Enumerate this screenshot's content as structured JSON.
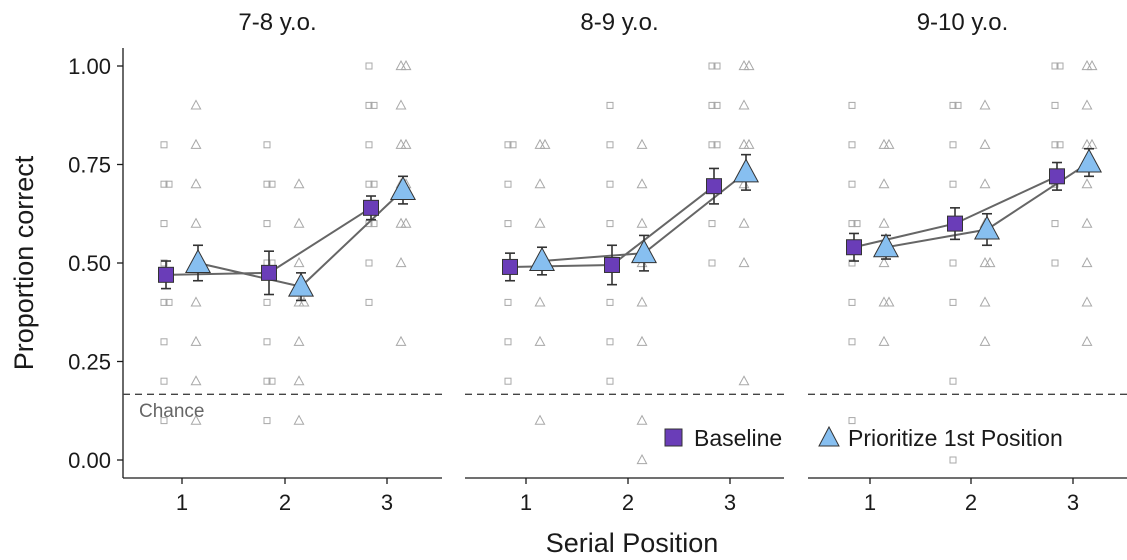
{
  "chart_data": {
    "type": "scatter",
    "title": "",
    "xlabel": "Serial Position",
    "ylabel": "Proportion correct",
    "ylim": [
      0,
      1.05
    ],
    "yticks": [
      "0.00",
      "0.25",
      "0.50",
      "0.75",
      "1.00"
    ],
    "ytick_values": [
      0,
      0.25,
      0.5,
      0.75,
      1.0
    ],
    "xticks": [
      "1",
      "2",
      "3"
    ],
    "grid": false,
    "legend_position": "bottom-right",
    "chance_level": 0.1667,
    "chance_label": "Chance",
    "colors": {
      "baseline_fill": "#6a3db8",
      "prioritize_fill": "#87bff0",
      "marker_edge": "#333333",
      "raw_points": "#a8a8a8",
      "line": "#666666"
    },
    "series": [
      {
        "name": "Baseline",
        "marker": "square"
      },
      {
        "name": "Prioritize 1st Position",
        "marker": "triangle"
      }
    ],
    "facets": [
      {
        "title": "7-8 y.o.",
        "means": [
          {
            "series": "Baseline",
            "x": [
              1,
              2,
              3
            ],
            "y": [
              0.47,
              0.475,
              0.64
            ],
            "err": [
              0.035,
              0.055,
              0.03
            ]
          },
          {
            "series": "Prioritize 1st Position",
            "x": [
              1,
              2,
              3
            ],
            "y": [
              0.5,
              0.44,
              0.685
            ],
            "err": [
              0.045,
              0.035,
              0.035
            ]
          }
        ],
        "raw": {
          "Baseline": [
            [
              0.1,
              0.2,
              0.3,
              0.4,
              0.4,
              0.5,
              0.6,
              0.7,
              0.7,
              0.8
            ],
            [
              0.1,
              0.2,
              0.2,
              0.3,
              0.4,
              0.5,
              0.5,
              0.6,
              0.7,
              0.7,
              0.8
            ],
            [
              0.4,
              0.5,
              0.6,
              0.6,
              0.7,
              0.7,
              0.8,
              0.9,
              0.9,
              1.0
            ]
          ],
          "Prioritize 1st Position": [
            [
              0.1,
              0.2,
              0.3,
              0.4,
              0.5,
              0.6,
              0.7,
              0.8,
              0.9
            ],
            [
              0.1,
              0.2,
              0.3,
              0.4,
              0.4,
              0.5,
              0.6,
              0.7
            ],
            [
              0.3,
              0.5,
              0.6,
              0.6,
              0.7,
              0.7,
              0.8,
              0.8,
              0.9,
              1.0,
              1.0
            ]
          ]
        }
      },
      {
        "title": "8-9 y.o.",
        "means": [
          {
            "series": "Baseline",
            "x": [
              1,
              2,
              3
            ],
            "y": [
              0.49,
              0.495,
              0.695
            ],
            "err": [
              0.035,
              0.05,
              0.045
            ]
          },
          {
            "series": "Prioritize 1st Position",
            "x": [
              1,
              2,
              3
            ],
            "y": [
              0.505,
              0.525,
              0.73
            ],
            "err": [
              0.035,
              0.045,
              0.045
            ]
          }
        ],
        "raw": {
          "Baseline": [
            [
              0.2,
              0.3,
              0.4,
              0.5,
              0.6,
              0.7,
              0.8,
              0.8
            ],
            [
              0.2,
              0.3,
              0.4,
              0.5,
              0.6,
              0.7,
              0.8,
              0.9
            ],
            [
              0.5,
              0.6,
              0.7,
              0.8,
              0.8,
              0.9,
              0.9,
              1.0,
              1.0
            ]
          ],
          "Prioritize 1st Position": [
            [
              0.1,
              0.3,
              0.4,
              0.5,
              0.6,
              0.7,
              0.8,
              0.8
            ],
            [
              0.0,
              0.1,
              0.3,
              0.4,
              0.5,
              0.6,
              0.7,
              0.8
            ],
            [
              0.2,
              0.5,
              0.6,
              0.7,
              0.8,
              0.8,
              0.9,
              1.0,
              1.0
            ]
          ]
        }
      },
      {
        "title": "9-10 y.o.",
        "means": [
          {
            "series": "Baseline",
            "x": [
              1,
              2,
              3
            ],
            "y": [
              0.54,
              0.6,
              0.72
            ],
            "err": [
              0.035,
              0.04,
              0.035
            ]
          },
          {
            "series": "Prioritize 1st Position",
            "x": [
              1,
              2,
              3
            ],
            "y": [
              0.54,
              0.585,
              0.755
            ],
            "err": [
              0.03,
              0.04,
              0.035
            ]
          }
        ],
        "raw": {
          "Baseline": [
            [
              0.1,
              0.3,
              0.4,
              0.5,
              0.6,
              0.6,
              0.7,
              0.8,
              0.9
            ],
            [
              0.0,
              0.2,
              0.4,
              0.5,
              0.6,
              0.7,
              0.8,
              0.9,
              0.9
            ],
            [
              0.5,
              0.6,
              0.7,
              0.8,
              0.8,
              0.9,
              1.0,
              1.0
            ]
          ],
          "Prioritize 1st Position": [
            [
              0.3,
              0.4,
              0.4,
              0.5,
              0.6,
              0.7,
              0.8,
              0.8
            ],
            [
              0.3,
              0.4,
              0.5,
              0.5,
              0.6,
              0.7,
              0.8,
              0.9
            ],
            [
              0.3,
              0.4,
              0.5,
              0.6,
              0.7,
              0.8,
              0.8,
              0.9,
              1.0,
              1.0
            ]
          ]
        }
      }
    ]
  }
}
